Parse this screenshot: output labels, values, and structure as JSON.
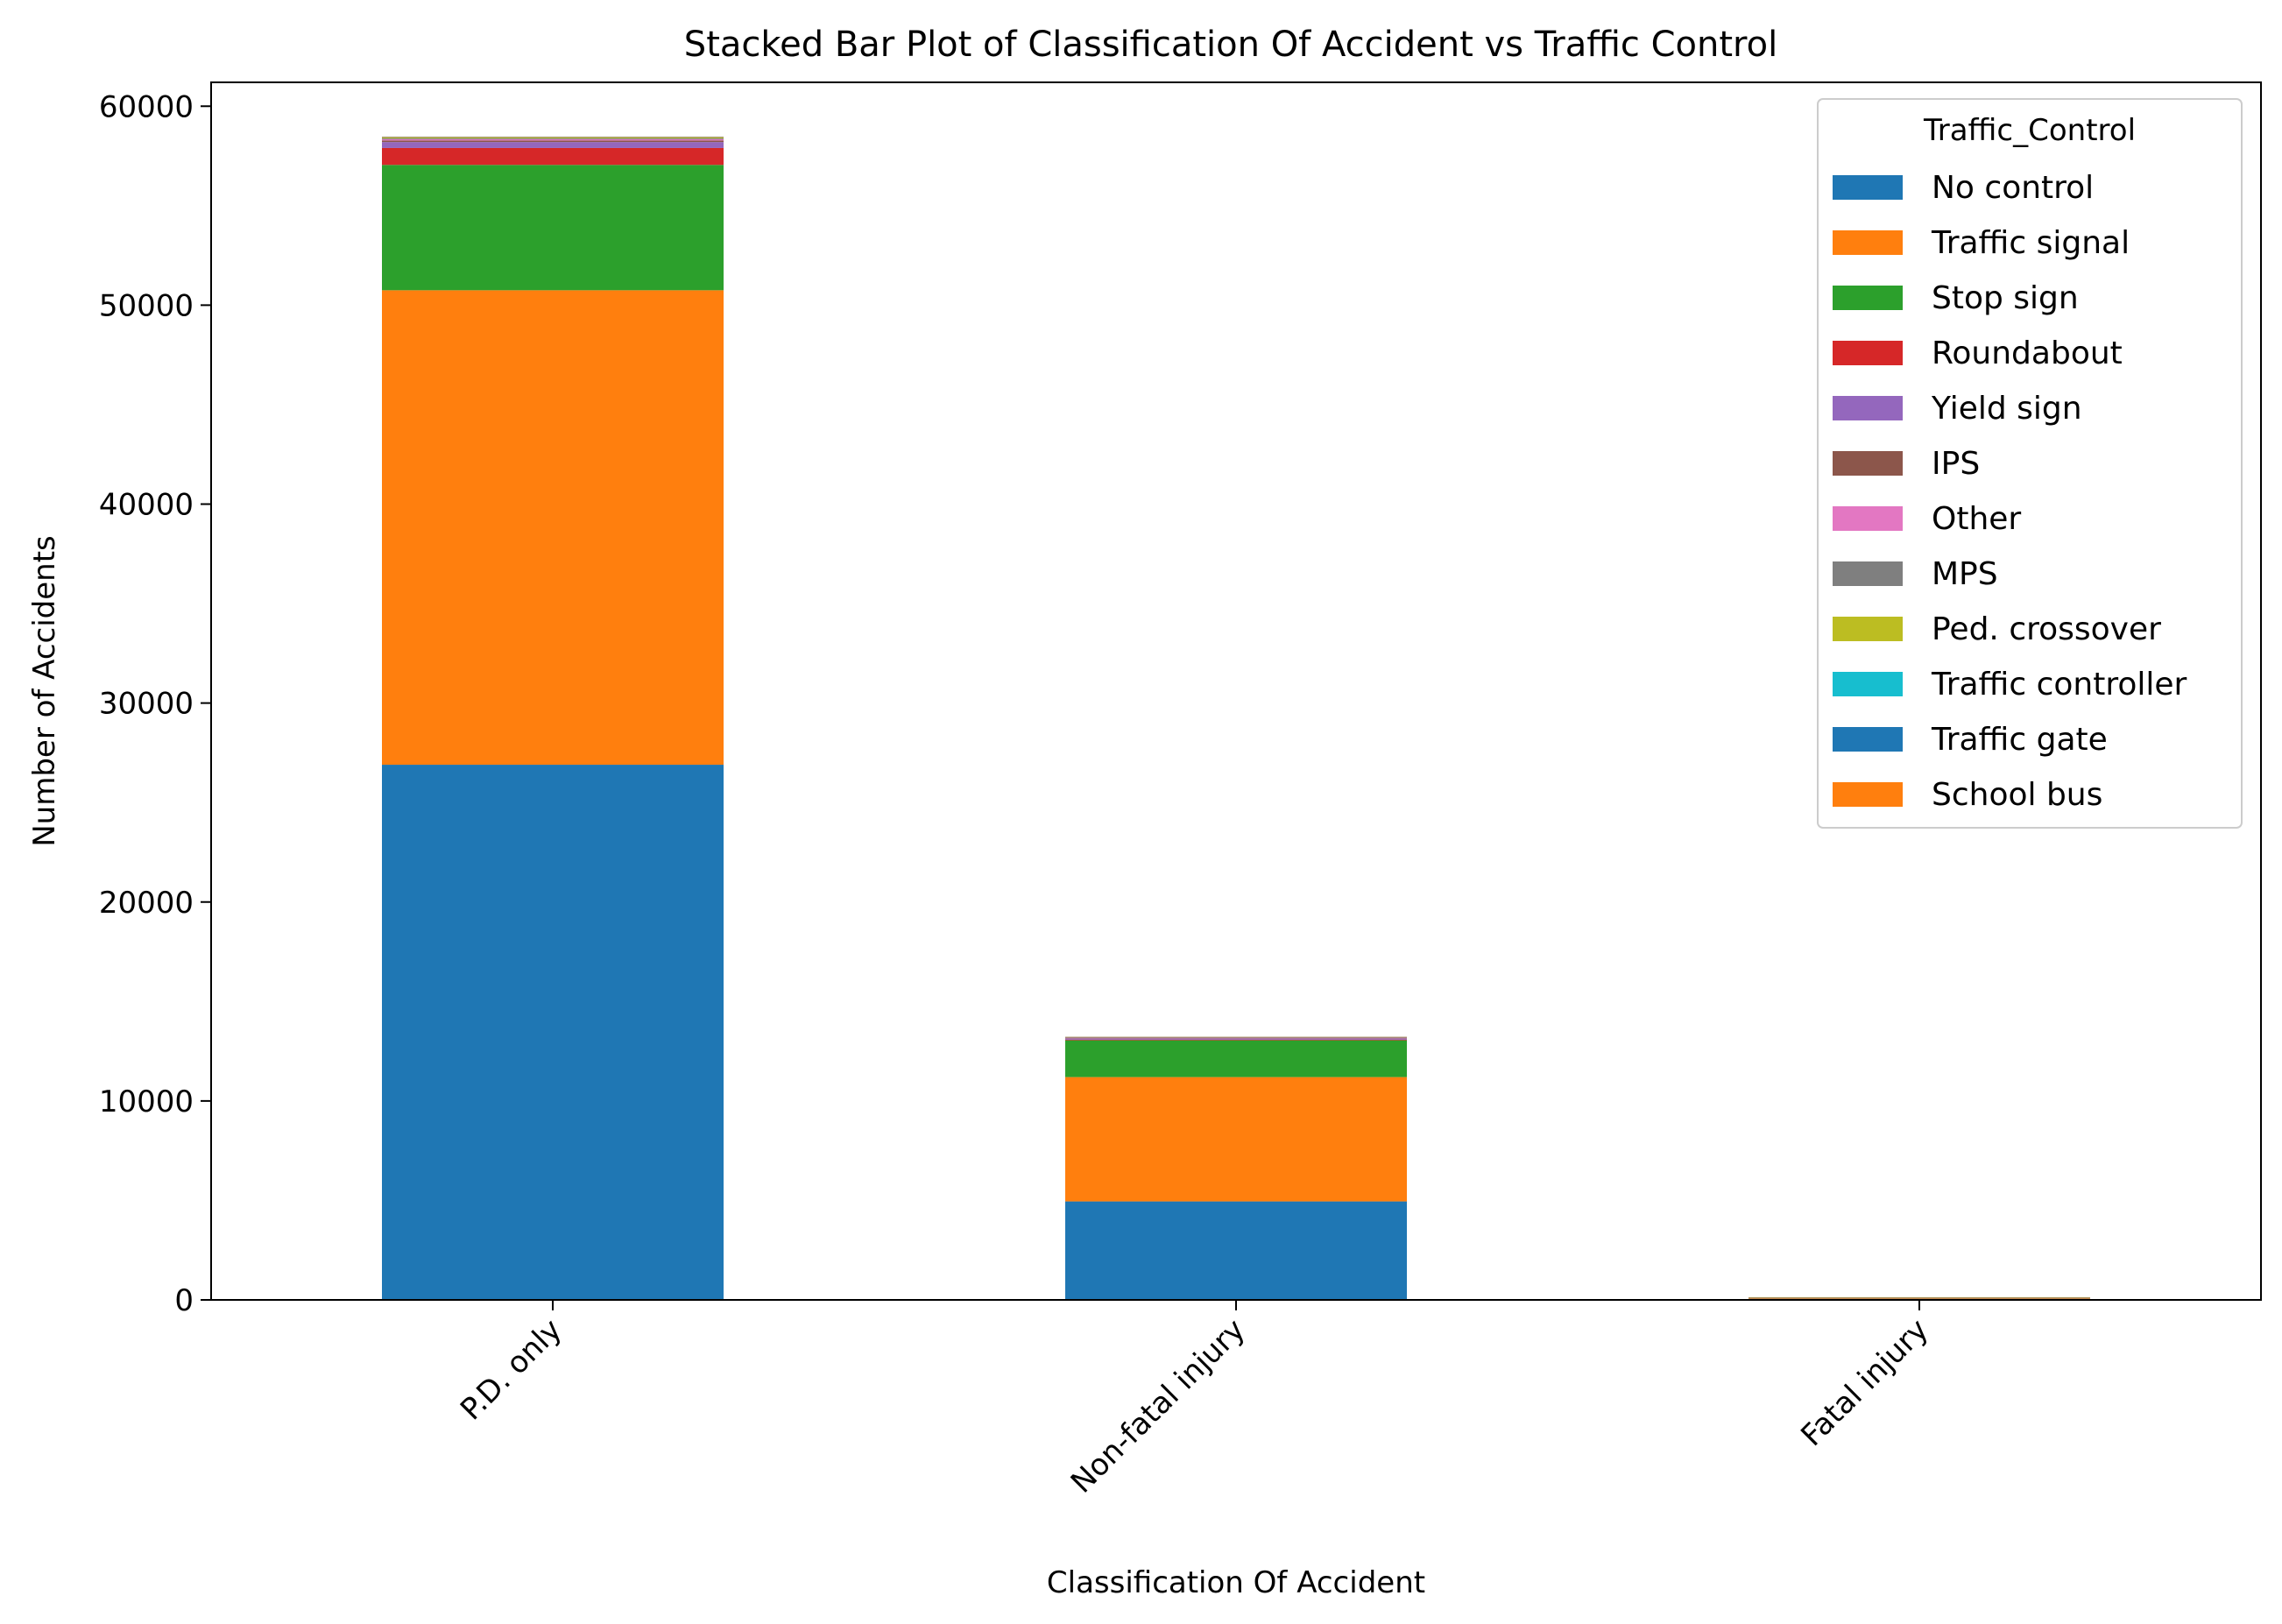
{
  "chart_data": {
    "type": "bar",
    "stacked": true,
    "title": "Stacked Bar Plot of Classification Of Accident vs Traffic Control",
    "xlabel": "Classification Of Accident",
    "ylabel": "Number of Accidents",
    "ylim": [
      0,
      61200
    ],
    "yticks": [
      0,
      10000,
      20000,
      30000,
      40000,
      50000,
      60000
    ],
    "grid": false,
    "legend_title": "Traffic_Control",
    "legend_position": "top-right",
    "categories": [
      "P.D. only",
      "Non-fatal injury",
      "Fatal injury"
    ],
    "series": [
      {
        "name": "No control",
        "color": "#1f77b4",
        "values": [
          26900,
          4950,
          60
        ]
      },
      {
        "name": "Traffic signal",
        "color": "#ff7f0e",
        "values": [
          23850,
          6250,
          40
        ]
      },
      {
        "name": "Stop sign",
        "color": "#2ca02c",
        "values": [
          6300,
          1850,
          20
        ]
      },
      {
        "name": "Roundabout",
        "color": "#d62728",
        "values": [
          850,
          30,
          2
        ]
      },
      {
        "name": "Yield sign",
        "color": "#9467bd",
        "values": [
          300,
          60,
          2
        ]
      },
      {
        "name": "IPS",
        "color": "#8c564b",
        "values": [
          80,
          20,
          1
        ]
      },
      {
        "name": "Other",
        "color": "#e377c2",
        "values": [
          60,
          20,
          1
        ]
      },
      {
        "name": "MPS",
        "color": "#7f7f7f",
        "values": [
          50,
          15,
          1
        ]
      },
      {
        "name": "Ped. crossover",
        "color": "#bcbd22",
        "values": [
          40,
          15,
          10
        ]
      },
      {
        "name": "Traffic controller",
        "color": "#17becf",
        "values": [
          20,
          5,
          0
        ]
      },
      {
        "name": "Traffic gate",
        "color": "#1f77b4",
        "values": [
          10,
          2,
          0
        ]
      },
      {
        "name": "School bus",
        "color": "#ff7f0e",
        "values": [
          5,
          1,
          0
        ]
      }
    ]
  }
}
